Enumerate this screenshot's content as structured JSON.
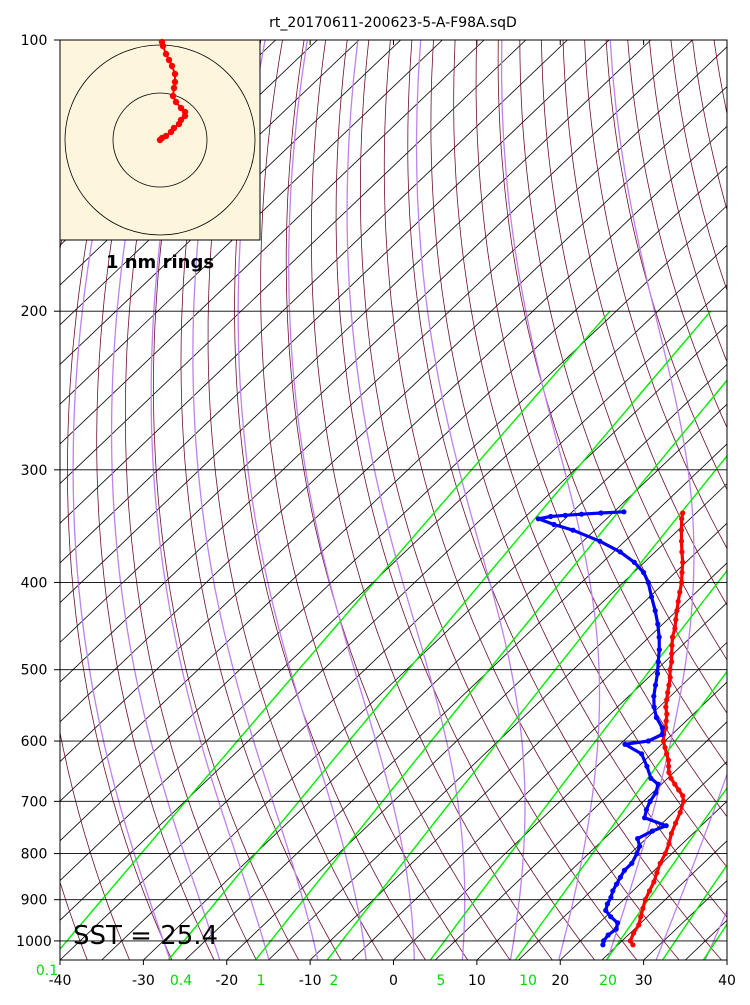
{
  "chart_data": {
    "type": "skew-t",
    "title": "rt_20170611-200623-5-A-F98A.sqD",
    "xlim": [
      -40,
      40
    ],
    "ylim": [
      1050,
      100
    ],
    "y_scale": "log",
    "pressure_ticks": [
      100,
      200,
      300,
      400,
      500,
      600,
      700,
      800,
      900,
      1000
    ],
    "temp_ticks": [
      -40,
      -30,
      -20,
      -10,
      0,
      10,
      20,
      30,
      40
    ],
    "mixing_ratio_labels": [
      "0.1",
      "0.4",
      "1",
      "2",
      "5",
      "10",
      "20"
    ],
    "sst_label": "SST = 25.4",
    "hodograph": {
      "label": "1 nm rings",
      "background": "#fdf6dc"
    },
    "colors": {
      "temperature": "#ff0000",
      "dewpoint": "#0000ff",
      "mixing_ratio": "#00ee00",
      "dry_adiabat": "#6b0f2a",
      "moist_adiabat": "#c080ee",
      "isotherm": "#000000"
    },
    "series": [
      {
        "name": "Temperature",
        "points": [
          [
            1010,
            26.8
          ],
          [
            1000,
            26.0
          ],
          [
            980,
            25.4
          ],
          [
            960,
            25.0
          ],
          [
            940,
            24.2
          ],
          [
            920,
            23.4
          ],
          [
            900,
            22.6
          ],
          [
            880,
            22.0
          ],
          [
            860,
            21.4
          ],
          [
            840,
            20.6
          ],
          [
            820,
            19.8
          ],
          [
            800,
            19.2
          ],
          [
            780,
            18.4
          ],
          [
            760,
            17.4
          ],
          [
            740,
            16.6
          ],
          [
            720,
            15.8
          ],
          [
            700,
            14.8
          ],
          [
            690,
            14.0
          ],
          [
            680,
            12.8
          ],
          [
            670,
            11.6
          ],
          [
            660,
            10.4
          ],
          [
            650,
            9.4
          ],
          [
            640,
            8.6
          ],
          [
            630,
            7.8
          ],
          [
            620,
            6.8
          ],
          [
            610,
            5.8
          ],
          [
            600,
            4.8
          ],
          [
            590,
            4.0
          ],
          [
            580,
            3.4
          ],
          [
            570,
            2.6
          ],
          [
            560,
            1.8
          ],
          [
            550,
            0.8
          ],
          [
            540,
            0.0
          ],
          [
            530,
            -0.8
          ],
          [
            520,
            -1.6
          ],
          [
            510,
            -2.4
          ],
          [
            500,
            -3.4
          ],
          [
            490,
            -4.2
          ],
          [
            480,
            -5.2
          ],
          [
            470,
            -6.2
          ],
          [
            460,
            -7.2
          ],
          [
            450,
            -8.0
          ],
          [
            440,
            -9.0
          ],
          [
            430,
            -10.0
          ],
          [
            420,
            -11.0
          ],
          [
            410,
            -12.0
          ],
          [
            400,
            -13.0
          ],
          [
            390,
            -14.2
          ],
          [
            380,
            -15.4
          ],
          [
            370,
            -16.8
          ],
          [
            360,
            -18.2
          ],
          [
            350,
            -19.6
          ],
          [
            340,
            -21.0
          ],
          [
            335,
            -21.6
          ]
        ]
      },
      {
        "name": "Dewpoint",
        "points": [
          [
            1010,
            23.2
          ],
          [
            1000,
            22.8
          ],
          [
            985,
            22.6
          ],
          [
            970,
            22.8
          ],
          [
            955,
            22.2
          ],
          [
            940,
            20.6
          ],
          [
            925,
            19.2
          ],
          [
            910,
            18.6
          ],
          [
            895,
            18.2
          ],
          [
            880,
            17.6
          ],
          [
            865,
            17.2
          ],
          [
            850,
            16.8
          ],
          [
            835,
            16.4
          ],
          [
            820,
            16.4
          ],
          [
            800,
            15.8
          ],
          [
            785,
            15.2
          ],
          [
            770,
            14.0
          ],
          [
            755,
            14.8
          ],
          [
            745,
            15.8
          ],
          [
            730,
            12.2
          ],
          [
            715,
            11.4
          ],
          [
            700,
            10.8
          ],
          [
            685,
            10.4
          ],
          [
            670,
            9.6
          ],
          [
            660,
            8.0
          ],
          [
            640,
            6.0
          ],
          [
            620,
            3.8
          ],
          [
            605,
            0.6
          ],
          [
            600,
            3.0
          ],
          [
            590,
            3.8
          ],
          [
            580,
            3.0
          ],
          [
            565,
            1.0
          ],
          [
            550,
            -0.6
          ],
          [
            535,
            -2.0
          ],
          [
            520,
            -3.2
          ],
          [
            505,
            -4.4
          ],
          [
            490,
            -5.8
          ],
          [
            475,
            -7.2
          ],
          [
            460,
            -8.8
          ],
          [
            445,
            -10.6
          ],
          [
            430,
            -12.6
          ],
          [
            415,
            -14.8
          ],
          [
            400,
            -17.0
          ],
          [
            390,
            -18.8
          ],
          [
            380,
            -21.2
          ],
          [
            370,
            -24.2
          ],
          [
            360,
            -28.0
          ],
          [
            350,
            -32.6
          ],
          [
            345,
            -35.6
          ],
          [
            340,
            -38.2
          ],
          [
            338,
            -37.0
          ],
          [
            337,
            -35.4
          ],
          [
            336,
            -33.6
          ],
          [
            335,
            -31.4
          ],
          [
            334,
            -28.8
          ]
        ]
      }
    ],
    "hodograph_points": [
      [
        162,
        42
      ],
      [
        163,
        46
      ],
      [
        166,
        54
      ],
      [
        169,
        60
      ],
      [
        172,
        66
      ],
      [
        175,
        74
      ],
      [
        175,
        82
      ],
      [
        174,
        88
      ],
      [
        173,
        96
      ],
      [
        176,
        102
      ],
      [
        181,
        108
      ],
      [
        185,
        112
      ],
      [
        185,
        116
      ],
      [
        181,
        120
      ],
      [
        179,
        124
      ],
      [
        174,
        128
      ],
      [
        171,
        132
      ],
      [
        166,
        136
      ],
      [
        162,
        138
      ],
      [
        160,
        140
      ]
    ]
  }
}
